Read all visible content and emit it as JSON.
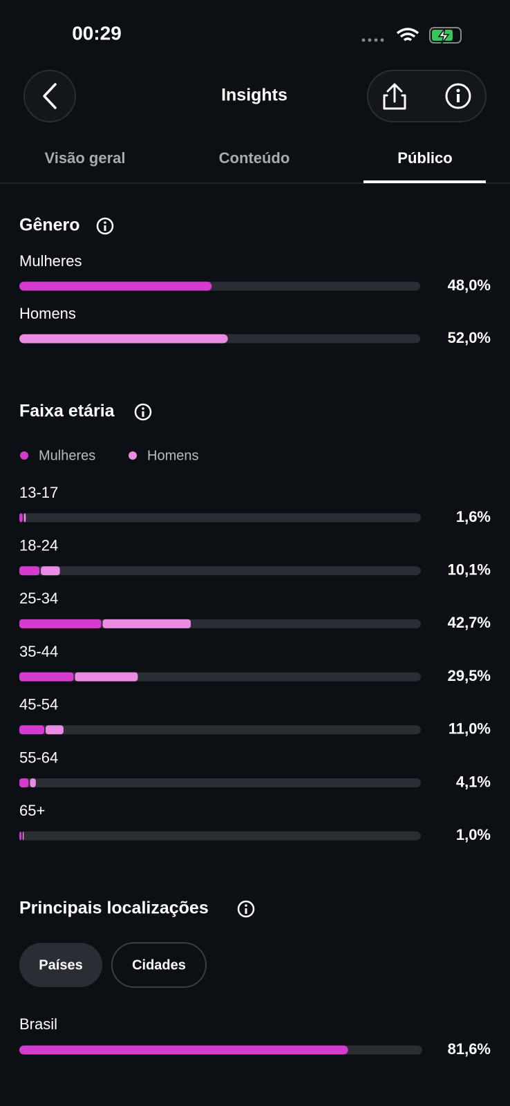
{
  "status_bar": {
    "time": "00:29"
  },
  "header": {
    "title": "Insights",
    "tabs": [
      "Visão geral",
      "Conteúdo",
      "Público"
    ],
    "active_tab": 2
  },
  "scale": [
    0,
    100
  ],
  "colors": {
    "women": "#d63bd0",
    "men": "#ea8be4",
    "track": "#2a2d33"
  },
  "gender": {
    "title": "Gênero",
    "rows": [
      {
        "label": "Mulheres",
        "value": 48.0,
        "value_label": "48,0%"
      },
      {
        "label": "Homens",
        "value": 52.0,
        "value_label": "52,0%"
      }
    ]
  },
  "age": {
    "title": "Faixa etária",
    "legend": [
      "Mulheres",
      "Homens"
    ],
    "rows": [
      {
        "label": "13-17",
        "value": 1.6,
        "value_label": "1,6%",
        "women": 0.8,
        "men": 0.8
      },
      {
        "label": "18-24",
        "value": 10.1,
        "value_label": "10,1%",
        "women": 5.0,
        "men": 5.1
      },
      {
        "label": "25-34",
        "value": 42.7,
        "value_label": "42,7%",
        "women": 20.4,
        "men": 22.3
      },
      {
        "label": "35-44",
        "value": 29.5,
        "value_label": "29,5%",
        "women": 13.5,
        "men": 16.0
      },
      {
        "label": "45-54",
        "value": 11.0,
        "value_label": "11,0%",
        "women": 6.2,
        "men": 4.8
      },
      {
        "label": "55-64",
        "value": 4.1,
        "value_label": "4,1%",
        "women": 2.3,
        "men": 1.8
      },
      {
        "label": "65+",
        "value": 1.0,
        "value_label": "1,0%",
        "women": 0.5,
        "men": 0.5
      }
    ]
  },
  "locations": {
    "title": "Principais localizações",
    "chips": [
      "Países",
      "Cidades"
    ],
    "active_chip": 0,
    "rows": [
      {
        "label": "Brasil",
        "value": 81.6,
        "value_label": "81,6%"
      }
    ]
  }
}
